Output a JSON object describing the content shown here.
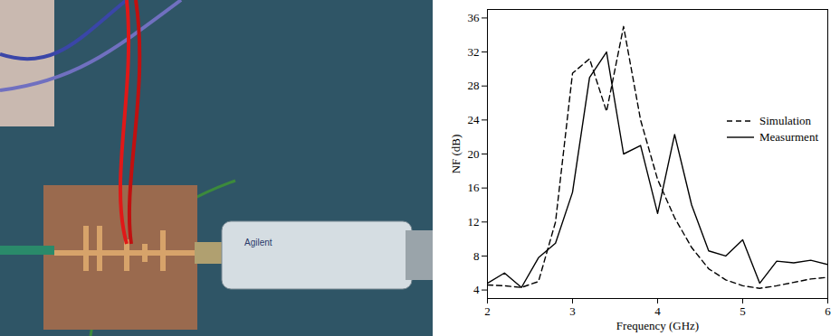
{
  "chart_data": {
    "type": "line",
    "xlabel": "Frequency (GHz)",
    "ylabel": "NF (dB)",
    "x": [
      2.0,
      2.2,
      2.4,
      2.6,
      2.8,
      3.0,
      3.2,
      3.4,
      3.6,
      3.8,
      4.0,
      4.2,
      4.4,
      4.6,
      4.8,
      5.0,
      5.2,
      5.4,
      5.6,
      5.8,
      6.0
    ],
    "series": [
      {
        "name": "Simulation",
        "color": "#000000",
        "line_style": "dashed",
        "values": [
          4.6,
          4.5,
          4.3,
          5.0,
          12,
          29.5,
          31.2,
          25,
          35,
          24,
          17,
          12.5,
          9,
          6.5,
          5.2,
          4.5,
          4.2,
          4.5,
          4.9,
          5.3,
          5.5
        ]
      },
      {
        "name": "Measurment",
        "color": "#000000",
        "line_style": "solid",
        "values": [
          4.8,
          6,
          4.3,
          7.8,
          9.5,
          15.5,
          29,
          32,
          20,
          21,
          13,
          22.3,
          14,
          8.6,
          8,
          9.9,
          4.8,
          7.4,
          7.2,
          7.5,
          7
        ]
      }
    ],
    "xlim": [
      2,
      6
    ],
    "xticks": [
      2,
      3,
      4,
      5,
      6
    ],
    "ylim": [
      3,
      37
    ],
    "yticks": [
      4,
      8,
      12,
      16,
      20,
      24,
      28,
      32,
      36
    ],
    "grid": false,
    "legend": "right"
  },
  "photo": {
    "device_label": "Agilent"
  }
}
